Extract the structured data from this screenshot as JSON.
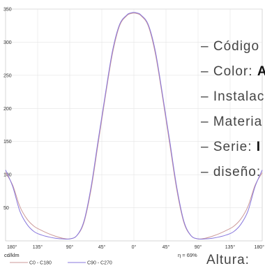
{
  "chart_data": {
    "type": "line",
    "unit_label": "cd/klm",
    "efficiency": "η = 69%",
    "ylim": [
      0,
      350
    ],
    "yticks": [
      50,
      100,
      150,
      200,
      250,
      300,
      350
    ],
    "x_tick_labels": [
      "180°",
      "135°",
      "90°",
      "45°",
      "0°",
      "45°",
      "90°",
      "135°",
      "180°"
    ],
    "grid": true,
    "legend_position": "bottom-left",
    "x": [
      -180,
      -170,
      -160,
      -150,
      -140,
      -130,
      -120,
      -110,
      -100,
      -90,
      -80,
      -70,
      -60,
      -50,
      -40,
      -30,
      -20,
      -10,
      -5,
      0,
      5,
      10,
      20,
      30,
      40,
      50,
      60,
      70,
      80,
      90,
      100,
      110,
      120,
      130,
      140,
      150,
      160,
      170,
      180
    ],
    "series": [
      {
        "name": "C0 - C180",
        "color": "#cc9999",
        "values": [
          103,
          84,
          52,
          33,
          22,
          16,
          11,
          7,
          4,
          3,
          8,
          28,
          78,
          148,
          218,
          283,
          325,
          340,
          343,
          344,
          343,
          340,
          325,
          283,
          218,
          148,
          78,
          28,
          8,
          3,
          4,
          7,
          11,
          16,
          22,
          33,
          52,
          84,
          103
        ]
      },
      {
        "name": "C90 - C270",
        "color": "#8877dd",
        "values": [
          107,
          82,
          45,
          25,
          14,
          9,
          6,
          4,
          3,
          3,
          8,
          30,
          82,
          153,
          222,
          287,
          327,
          341,
          344,
          345,
          344,
          341,
          327,
          287,
          222,
          153,
          82,
          30,
          8,
          3,
          3,
          4,
          6,
          9,
          14,
          25,
          45,
          82,
          107
        ]
      }
    ]
  },
  "info": {
    "lines": [
      {
        "prefix": "– ",
        "text": "Código",
        "bold": ""
      },
      {
        "prefix": "– ",
        "text": "Color: ",
        "bold": "A"
      },
      {
        "prefix": "– ",
        "text": "Instalac",
        "bold": ""
      },
      {
        "prefix": "– ",
        "text": "Materia",
        "bold": ""
      },
      {
        "prefix": "– ",
        "text": "Serie: ",
        "bold": "I"
      },
      {
        "prefix": "– ",
        "text": "diseño:",
        "bold": ""
      }
    ],
    "height": "Altura:"
  }
}
